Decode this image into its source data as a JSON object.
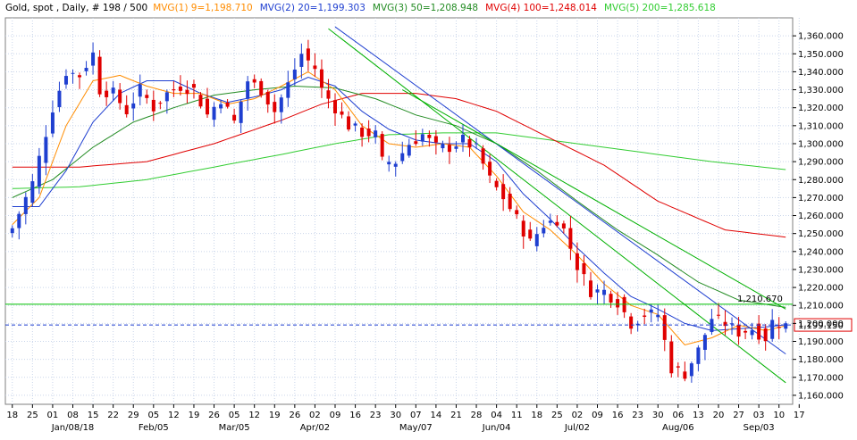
{
  "header": {
    "instrument": "Gold, spot , Daily, # 198 / 500",
    "indicators": [
      {
        "label": "MVG(1) 9=1,198.710",
        "color": "#ff8c00"
      },
      {
        "label": "MVG(2) 20=1,199.303",
        "color": "#1f3fd0"
      },
      {
        "label": "MVG(3) 50=1,208.948",
        "color": "#228b22"
      },
      {
        "label": "MVG(4) 100=1,248.014",
        "color": "#e00000"
      },
      {
        "label": "MVG(5) 200=1,285.618",
        "color": "#32cd32"
      }
    ]
  },
  "colors": {
    "up": "#1f3fd0",
    "down": "#e00000",
    "ma9": "#ff8c00",
    "ma20": "#1f3fd0",
    "ma50": "#228b22",
    "ma100": "#e00000",
    "ma200": "#32cd32",
    "trend": "#1f3fd0",
    "channel": "#00b000",
    "hline": "#00c000",
    "last_price_box": "#e00000",
    "grid": "#c9d5ea"
  },
  "chart_data": {
    "type": "candlestick",
    "ylim": [
      1155,
      1370
    ],
    "y_ticks": [
      "1,160.000",
      "1,170.000",
      "1,180.000",
      "1,190.000",
      "1,200.000",
      "1,210.000",
      "1,220.000",
      "1,230.000",
      "1,240.000",
      "1,250.000",
      "1,260.000",
      "1,270.000",
      "1,280.000",
      "1,290.000",
      "1,300.000",
      "1,310.000",
      "1,320.000",
      "1,330.000",
      "1,340.000",
      "1,350.000",
      "1,360.000"
    ],
    "x_ticks": [
      "18",
      "25",
      "01",
      "08",
      "15",
      "22",
      "29",
      "05",
      "12",
      "19",
      "26",
      "05",
      "12",
      "19",
      "26",
      "02",
      "09",
      "16",
      "23",
      "30",
      "07",
      "14",
      "21",
      "28",
      "04",
      "11",
      "18",
      "25",
      "02",
      "09",
      "16",
      "23",
      "30",
      "06",
      "13",
      "20",
      "27",
      "03",
      "10",
      "17"
    ],
    "month_labels": [
      {
        "label": "Jan/08/18",
        "at_tick": 3
      },
      {
        "label": "Feb/05",
        "at_tick": 7
      },
      {
        "label": "Mar/05",
        "at_tick": 11
      },
      {
        "label": "Apr/02",
        "at_tick": 15
      },
      {
        "label": "May/07",
        "at_tick": 20
      },
      {
        "label": "Jun/04",
        "at_tick": 24
      },
      {
        "label": "Jul/02",
        "at_tick": 28
      },
      {
        "label": "Aug/06",
        "at_tick": 33
      },
      {
        "label": "Sep/03",
        "at_tick": 37
      }
    ],
    "horizontal_line": {
      "value": 1210.67,
      "label": "1,210.670"
    },
    "last_price": {
      "value": 1199.15,
      "label": "1,199.150"
    },
    "close_path": [
      [
        0,
        1253
      ],
      [
        3,
        1278
      ],
      [
        6,
        1320
      ],
      [
        8,
        1340
      ],
      [
        10,
        1338
      ],
      [
        12,
        1350
      ],
      [
        13,
        1330
      ],
      [
        15,
        1328
      ],
      [
        17,
        1318
      ],
      [
        19,
        1330
      ],
      [
        21,
        1320
      ],
      [
        23,
        1328
      ],
      [
        25,
        1332
      ],
      [
        27,
        1330
      ],
      [
        29,
        1316
      ],
      [
        31,
        1325
      ],
      [
        33,
        1312
      ],
      [
        35,
        1335
      ],
      [
        37,
        1330
      ],
      [
        39,
        1318
      ],
      [
        41,
        1333
      ],
      [
        43,
        1350
      ],
      [
        45,
        1342
      ],
      [
        46,
        1330
      ],
      [
        48,
        1320
      ],
      [
        50,
        1310
      ],
      [
        52,
        1306
      ],
      [
        54,
        1305
      ],
      [
        55,
        1290
      ],
      [
        57,
        1290
      ],
      [
        59,
        1300
      ],
      [
        61,
        1305
      ],
      [
        63,
        1298
      ],
      [
        65,
        1298
      ],
      [
        67,
        1302
      ],
      [
        69,
        1297
      ],
      [
        71,
        1280
      ],
      [
        73,
        1270
      ],
      [
        75,
        1258
      ],
      [
        77,
        1245
      ],
      [
        79,
        1255
      ],
      [
        81,
        1258
      ],
      [
        82,
        1252
      ],
      [
        84,
        1232
      ],
      [
        86,
        1218
      ],
      [
        88,
        1218
      ],
      [
        90,
        1212
      ],
      [
        92,
        1200
      ],
      [
        94,
        1205
      ],
      [
        96,
        1205
      ],
      [
        97,
        1190
      ],
      [
        98,
        1175
      ],
      [
        100,
        1172
      ],
      [
        102,
        1185
      ],
      [
        104,
        1203
      ],
      [
        106,
        1200
      ],
      [
        108,
        1195
      ],
      [
        110,
        1197
      ],
      [
        112,
        1192
      ],
      [
        113,
        1201
      ],
      [
        115,
        1199
      ]
    ],
    "ma9_path": [
      [
        0,
        1255
      ],
      [
        4,
        1270
      ],
      [
        8,
        1310
      ],
      [
        12,
        1335
      ],
      [
        16,
        1338
      ],
      [
        20,
        1332
      ],
      [
        24,
        1328
      ],
      [
        28,
        1328
      ],
      [
        32,
        1322
      ],
      [
        36,
        1325
      ],
      [
        40,
        1332
      ],
      [
        44,
        1340
      ],
      [
        48,
        1330
      ],
      [
        52,
        1310
      ],
      [
        56,
        1300
      ],
      [
        60,
        1298
      ],
      [
        64,
        1300
      ],
      [
        68,
        1298
      ],
      [
        72,
        1282
      ],
      [
        76,
        1262
      ],
      [
        80,
        1252
      ],
      [
        84,
        1238
      ],
      [
        88,
        1222
      ],
      [
        92,
        1210
      ],
      [
        96,
        1205
      ],
      [
        100,
        1188
      ],
      [
        104,
        1192
      ],
      [
        108,
        1199
      ],
      [
        112,
        1196
      ],
      [
        115,
        1198.7
      ]
    ],
    "ma20_path": [
      [
        0,
        1265
      ],
      [
        4,
        1265
      ],
      [
        8,
        1285
      ],
      [
        12,
        1312
      ],
      [
        16,
        1328
      ],
      [
        20,
        1335
      ],
      [
        24,
        1335
      ],
      [
        28,
        1328
      ],
      [
        32,
        1323
      ],
      [
        36,
        1326
      ],
      [
        40,
        1330
      ],
      [
        44,
        1337
      ],
      [
        48,
        1332
      ],
      [
        52,
        1318
      ],
      [
        56,
        1308
      ],
      [
        60,
        1302
      ],
      [
        64,
        1300
      ],
      [
        68,
        1300
      ],
      [
        72,
        1290
      ],
      [
        76,
        1272
      ],
      [
        80,
        1258
      ],
      [
        84,
        1242
      ],
      [
        88,
        1228
      ],
      [
        92,
        1215
      ],
      [
        96,
        1208
      ],
      [
        100,
        1200
      ],
      [
        104,
        1196
      ],
      [
        108,
        1197
      ],
      [
        112,
        1198
      ],
      [
        115,
        1199.3
      ]
    ],
    "ma50_path": [
      [
        0,
        1270
      ],
      [
        6,
        1280
      ],
      [
        12,
        1298
      ],
      [
        18,
        1312
      ],
      [
        24,
        1320
      ],
      [
        30,
        1327
      ],
      [
        36,
        1330
      ],
      [
        42,
        1332
      ],
      [
        48,
        1331
      ],
      [
        54,
        1325
      ],
      [
        60,
        1316
      ],
      [
        66,
        1310
      ],
      [
        72,
        1300
      ],
      [
        78,
        1285
      ],
      [
        84,
        1268
      ],
      [
        90,
        1252
      ],
      [
        96,
        1238
      ],
      [
        102,
        1223
      ],
      [
        108,
        1213
      ],
      [
        115,
        1208.9
      ]
    ],
    "ma100_path": [
      [
        0,
        1287
      ],
      [
        10,
        1287
      ],
      [
        20,
        1290
      ],
      [
        30,
        1300
      ],
      [
        40,
        1313
      ],
      [
        46,
        1322
      ],
      [
        52,
        1328
      ],
      [
        60,
        1328
      ],
      [
        66,
        1325
      ],
      [
        72,
        1318
      ],
      [
        80,
        1303
      ],
      [
        88,
        1288
      ],
      [
        96,
        1268
      ],
      [
        106,
        1252
      ],
      [
        115,
        1248
      ]
    ],
    "ma200_path": [
      [
        0,
        1275
      ],
      [
        10,
        1276
      ],
      [
        20,
        1280
      ],
      [
        30,
        1287
      ],
      [
        40,
        1294
      ],
      [
        48,
        1300
      ],
      [
        56,
        1305
      ],
      [
        64,
        1306
      ],
      [
        72,
        1306
      ],
      [
        80,
        1302
      ],
      [
        88,
        1298
      ],
      [
        96,
        1294
      ],
      [
        104,
        1290
      ],
      [
        115,
        1285.6
      ]
    ],
    "trendlines": [
      {
        "points": [
          [
            48,
            1365
          ],
          [
            115,
            1183
          ]
        ],
        "color": "trend"
      },
      {
        "points": [
          [
            47,
            1364
          ],
          [
            115,
            1167
          ]
        ],
        "color": "channel"
      },
      {
        "points": [
          [
            58,
            1330
          ],
          [
            115,
            1208
          ]
        ],
        "color": "channel"
      }
    ]
  }
}
